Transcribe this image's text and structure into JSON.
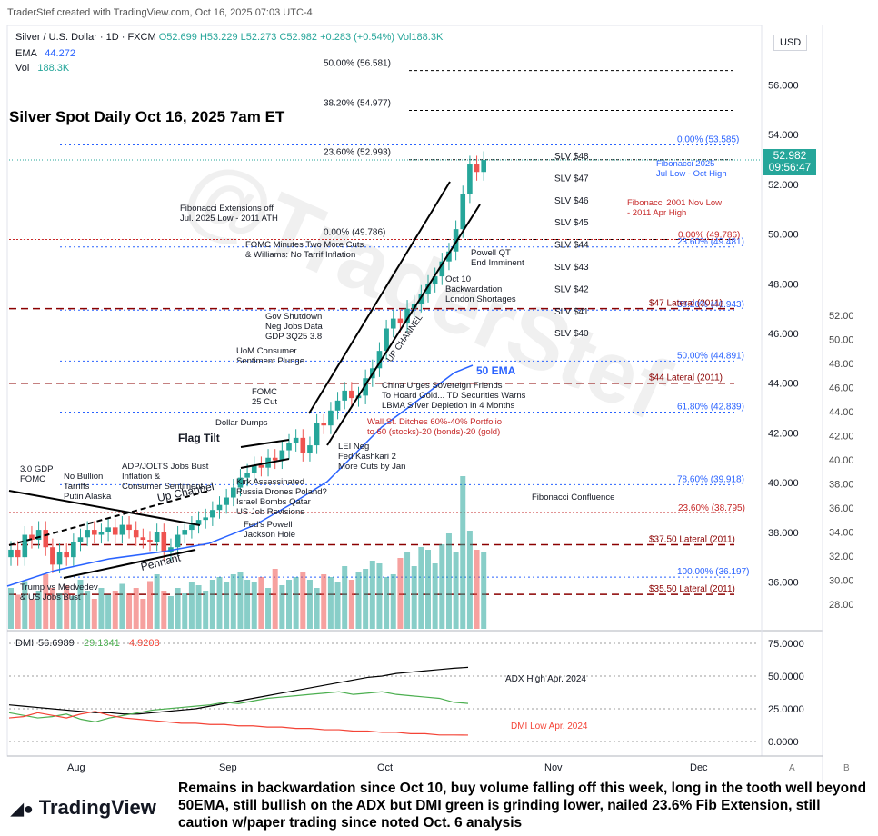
{
  "header": {
    "creator": "TraderStef created with TradingView.com, Oct 16, 2025 07:03 UTC-4",
    "symbol_line": "Silver / U.S. Dollar · 1D · FXCM",
    "ohlc": {
      "o": "O52.699",
      "h": "H53.229",
      "l": "L52.273",
      "c": "C52.982",
      "chg": "+0.283 (+0.54%)",
      "vol": "Vol188.3K"
    },
    "ema_label": "EMA",
    "ema_value": "44.272",
    "vol_label": "Vol",
    "vol_value": "188.3K",
    "currency": "USD",
    "price_badge": "52.982",
    "price_timer": "09:56:47",
    "title": "Silver Spot Daily Oct 16, 2025 7am ET"
  },
  "colors": {
    "up": "#26a69a",
    "down": "#ef5350",
    "ema": "#2962ff",
    "fib": "#2962ff",
    "lateral": "#8b0000",
    "dmi_plus": "#4caf50",
    "dmi_minus": "#f44336",
    "adx": "#000000"
  },
  "chart_data": {
    "type": "candlestick",
    "title": "Silver Spot Daily Oct 16, 2025 7am ET",
    "x_ticks": [
      "Aug",
      "Sep",
      "Oct",
      "Nov",
      "Dec"
    ],
    "left_axis_ticks": [
      "36.000",
      "38.000",
      "40.000",
      "42.000",
      "44.000",
      "46.000",
      "48.000",
      "50.000",
      "52.000",
      "54.000",
      "56.000"
    ],
    "right_axis_ticks": [
      "28.00",
      "30.00",
      "32.00",
      "34.00",
      "36.00",
      "38.00",
      "40.00",
      "42.00",
      "44.00",
      "46.00",
      "48.00",
      "50.00",
      "52.00"
    ],
    "current_price": 52.982,
    "ema_label": "50 EMA",
    "closes": [
      37.3,
      37.0,
      37.9,
      37.7,
      38.1,
      37.4,
      36.7,
      37.2,
      37.0,
      37.6,
      37.8,
      38.1,
      37.9,
      38.0,
      38.2,
      37.9,
      38.3,
      38.1,
      37.8,
      37.7,
      37.6,
      38.0,
      37.2,
      37.4,
      37.9,
      38.1,
      38.3,
      38.5,
      38.6,
      38.9,
      39.1,
      39.4,
      39.8,
      40.2,
      40.4,
      40.7,
      40.6,
      41.0,
      40.9,
      41.3,
      41.6,
      41.8,
      41.2,
      41.5,
      42.4,
      42.3,
      42.9,
      43.3,
      43.7,
      43.4,
      43.5,
      44.2,
      44.6,
      45.3,
      46.2,
      46.6,
      46.4,
      47.0,
      47.2,
      47.6,
      48.0,
      48.3,
      48.9,
      49.3,
      50.2,
      51.6,
      52.8,
      52.5,
      52.982
    ],
    "volume_labels": [],
    "fib_extension_labels": [
      {
        "label": "50.00% (56.581)",
        "value": 56.581
      },
      {
        "label": "38.20% (54.977)",
        "value": 54.977
      },
      {
        "label": "23.60% (52.993)",
        "value": 52.993
      },
      {
        "label": "0.00% (49.786)",
        "value": 49.786
      }
    ],
    "fib_2025_labels": [
      {
        "label": "0.00% (53.585)",
        "value": 53.585
      },
      {
        "label": "23.60% (49.481)",
        "value": 49.481
      },
      {
        "label": "38.20% (46.943)",
        "value": 46.943
      },
      {
        "label": "50.00% (44.891)",
        "value": 44.891
      },
      {
        "label": "61.80% (42.839)",
        "value": 42.839
      },
      {
        "label": "78.60% (39.918)",
        "value": 39.918
      },
      {
        "label": "100.00% (36.197)",
        "value": 36.197
      }
    ],
    "fib_2001_labels": [
      {
        "label": "0.00% (49.786)",
        "value": 49.786
      },
      {
        "label": "23.60% (38.795)",
        "value": 38.795
      }
    ],
    "laterals": [
      {
        "label": "$47 Lateral (2011)",
        "value": 47.0
      },
      {
        "label": "$44 Lateral (2011)",
        "value": 44.0
      },
      {
        "label": "$37.50 Lateral (2011)",
        "value": 37.5
      },
      {
        "label": "$35.50 Lateral (2011)",
        "value": 35.5
      }
    ],
    "slv_labels": [
      "SLV $48",
      "SLV $47",
      "SLV $46",
      "SLV $45",
      "SLV $44",
      "SLV $43",
      "SLV $42",
      "SLV $41",
      "SLV $40"
    ],
    "annotations": [
      "Fibonacci Extensions off\nJul. 2025 Low - 2011 ATH",
      "Fibonacci 2025\nJul Low - Oct High",
      "Fibonacci 2001 Nov Low\n- 2011 Apr High",
      "FOMC Minutes Two More Cuts\n& Williams: No Tarrif Inflation",
      "Powell QT\nEnd Imminent",
      "Oct 10\nBackwardation\nLondon Shortages",
      "Gov Shutdown\nNeg Jobs Data\nGDP 3Q25 3.8",
      "UoM Consumer\nSentiment Plunge",
      "FOMC\n25 Cut",
      "China Urges Sovereign Friends\nTo Hoard Gold... TD Securities Warns\nLBMA Silver Depletion in 4 Months",
      "Wall St. Ditches 60%-40% Portfolio\nto 60 (stocks)-20 (bonds)-20 (gold)",
      "Dollar Dumps",
      "Flag Tilt",
      "LEI Neg\nFed Kashkari 2\nMore Cuts by Jan",
      "ADP/JOLTS Jobs Bust\nInflation &\nConsumer Sentiment",
      "Kirk Assassinated\nRussia Drones Poland?\nIsrael Bombs Qatar\nUS Job Revisions",
      "3.0 GDP\nFOMC",
      "No Bullion\nTarriffs\nPutin Alaska",
      "Up Channel",
      "Fed's Powell\nJackson Hole",
      "Pennant",
      "Trump vs Medvedev\n& US Jobs Bust",
      "UP CHANNEL",
      "Fibonacci Confluence"
    ],
    "dmi": {
      "label": "DMI",
      "adx": "56.6989",
      "plus_di": "29.1341",
      "minus_di": "4.9203",
      "ticks": [
        "75.0000",
        "50.0000",
        "25.0000",
        "0.0000"
      ],
      "notes": [
        "ADX High Apr. 2024",
        "DMI Low Apr. 2024"
      ],
      "adx_series": [
        28,
        27,
        26,
        25,
        24,
        23,
        22,
        22,
        21,
        21,
        22,
        23,
        24,
        25,
        27,
        29,
        31,
        33,
        35,
        37,
        39,
        41,
        43,
        45,
        47,
        49,
        50,
        52,
        53,
        54,
        55,
        56,
        56.7
      ],
      "plus_series": [
        22,
        20,
        18,
        19,
        21,
        17,
        15,
        18,
        20,
        22,
        24,
        25,
        26,
        27,
        28,
        30,
        29,
        31,
        33,
        34,
        35,
        36,
        37,
        38,
        36,
        37,
        38,
        36,
        35,
        34,
        33,
        30,
        29.1
      ],
      "minus_series": [
        18,
        19,
        22,
        20,
        18,
        21,
        23,
        20,
        18,
        17,
        16,
        15,
        14,
        14,
        13,
        13,
        12,
        12,
        11,
        11,
        10,
        10,
        9,
        9,
        8,
        8,
        7,
        7,
        6,
        6,
        5,
        5,
        4.9
      ]
    }
  },
  "footer": {
    "logo_text": "TradingView",
    "caption": "Remains in backwardation since Oct 10, buy volume falling off this week, long in the tooth well beyond 50EMA, still bullish on the ADX but DMI green is grinding lower, nailed 23.6% Fib Extension, still caution w/paper trading since noted Oct. 6 analysis",
    "corner_a": "A",
    "corner_b": "B"
  }
}
